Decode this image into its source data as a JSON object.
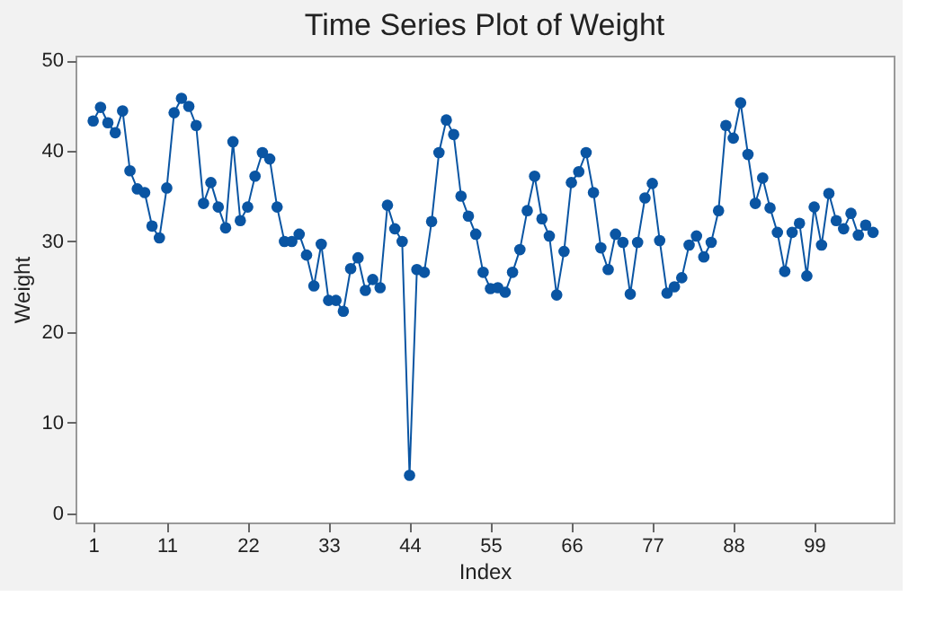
{
  "chart_data": {
    "type": "line",
    "title": "Time Series Plot of Weight",
    "xlabel": "Index",
    "ylabel": "Weight",
    "x": [
      1,
      2,
      3,
      4,
      5,
      6,
      7,
      8,
      9,
      10,
      11,
      12,
      13,
      14,
      15,
      16,
      17,
      18,
      19,
      20,
      21,
      22,
      23,
      24,
      25,
      26,
      27,
      28,
      29,
      30,
      31,
      32,
      33,
      34,
      35,
      36,
      37,
      38,
      39,
      40,
      41,
      42,
      43,
      44,
      45,
      46,
      47,
      48,
      49,
      50,
      51,
      52,
      53,
      54,
      55,
      56,
      57,
      58,
      59,
      60,
      61,
      62,
      63,
      64,
      65,
      66,
      67,
      68,
      69,
      70,
      71,
      72,
      73,
      74,
      75,
      76,
      77,
      78,
      79,
      80,
      81,
      82,
      83,
      84,
      85,
      86,
      87,
      88,
      89,
      90,
      91,
      92,
      93,
      94,
      95,
      96,
      97,
      98,
      99,
      100,
      101,
      102,
      103,
      104,
      105,
      106,
      107
    ],
    "series": [
      {
        "color": "#0a55a3",
        "values": [
          43.3,
          44.8,
          43.1,
          42,
          44.4,
          37.8,
          35.8,
          35.4,
          31.7,
          30.4,
          35.9,
          44.2,
          45.8,
          44.9,
          42.8,
          34.2,
          36.5,
          33.8,
          31.5,
          41,
          32.3,
          33.8,
          37.2,
          39.8,
          39.1,
          33.8,
          30,
          30,
          30.8,
          28.5,
          25.1,
          29.7,
          23.5,
          23.5,
          22.3,
          27,
          28.2,
          24.6,
          25.8,
          24.9,
          34,
          31.4,
          30,
          4.2,
          26.9,
          26.6,
          32.2,
          39.8,
          43.4,
          41.8,
          35,
          32.8,
          30.8,
          26.6,
          24.8,
          24.9,
          24.4,
          26.6,
          29.1,
          33.4,
          37.2,
          32.5,
          30.6,
          24.1,
          28.9,
          36.5,
          37.7,
          39.8,
          35.4,
          29.3,
          26.9,
          30.8,
          29.9,
          24.2,
          29.9,
          34.8,
          36.4,
          30.1,
          24.3,
          25,
          26,
          29.6,
          30.6,
          28.3,
          29.9,
          33.4,
          42.8,
          41.4,
          45.3,
          39.6,
          34.2,
          37,
          33.7,
          31,
          26.7,
          31,
          32,
          26.2,
          33.8,
          29.6,
          35.3,
          32.3,
          31.4,
          33.1,
          30.7,
          31.8,
          31
        ]
      }
    ],
    "xlim": [
      -1.4,
      109.8
    ],
    "xticks": [
      1,
      11,
      22,
      33,
      44,
      55,
      66,
      77,
      88,
      99
    ],
    "ylim": [
      -1,
      50.5
    ],
    "yticks": [
      0,
      10,
      20,
      30,
      40,
      50
    ],
    "marker": "circle",
    "line_style": "solid",
    "grid": false
  }
}
